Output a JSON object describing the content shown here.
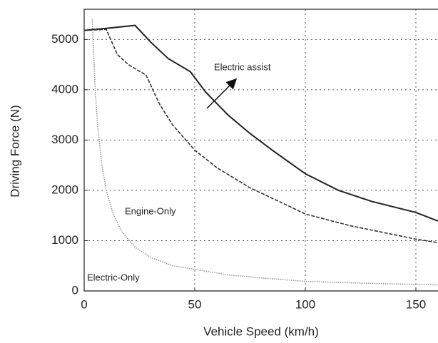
{
  "chart_data": {
    "type": "line",
    "xlabel": "Vehicle Speed (km/h)",
    "ylabel": "Driving Force (N)",
    "xlim": [
      0,
      160
    ],
    "xticks": [
      0,
      50,
      100,
      150
    ],
    "ylim": [
      0,
      5600
    ],
    "yticks": [
      0,
      1000,
      2000,
      3000,
      4000,
      5000
    ],
    "grid": true,
    "series": [
      {
        "name": "Electric assist",
        "color": "#222222",
        "style": "solid",
        "x": [
          0,
          10,
          23,
          30,
          38,
          48,
          55,
          65,
          75,
          85,
          100,
          115,
          130,
          150,
          160
        ],
        "values": [
          5180,
          5220,
          5280,
          4950,
          4620,
          4360,
          3950,
          3500,
          3130,
          2800,
          2330,
          2000,
          1780,
          1560,
          1390
        ]
      },
      {
        "name": "Engine-Only",
        "color": "#333333",
        "style": "dashed",
        "x": [
          0,
          10,
          15,
          20,
          28,
          34,
          40,
          50,
          60,
          75,
          90,
          100,
          120,
          150,
          160
        ],
        "values": [
          5180,
          5200,
          4700,
          4500,
          4290,
          3720,
          3300,
          2800,
          2450,
          2050,
          1740,
          1530,
          1300,
          1030,
          960
        ]
      },
      {
        "name": "Electric-Only",
        "color": "#999999",
        "style": "dotted",
        "x": [
          3.7,
          4,
          5,
          6,
          8,
          10,
          13,
          17,
          23,
          30,
          40,
          50,
          65,
          80,
          100,
          130,
          160
        ],
        "values": [
          5400,
          5000,
          4000,
          3330,
          2500,
          2000,
          1540,
          1180,
          870,
          670,
          500,
          430,
          320,
          260,
          190,
          150,
          120
        ]
      }
    ]
  }
}
